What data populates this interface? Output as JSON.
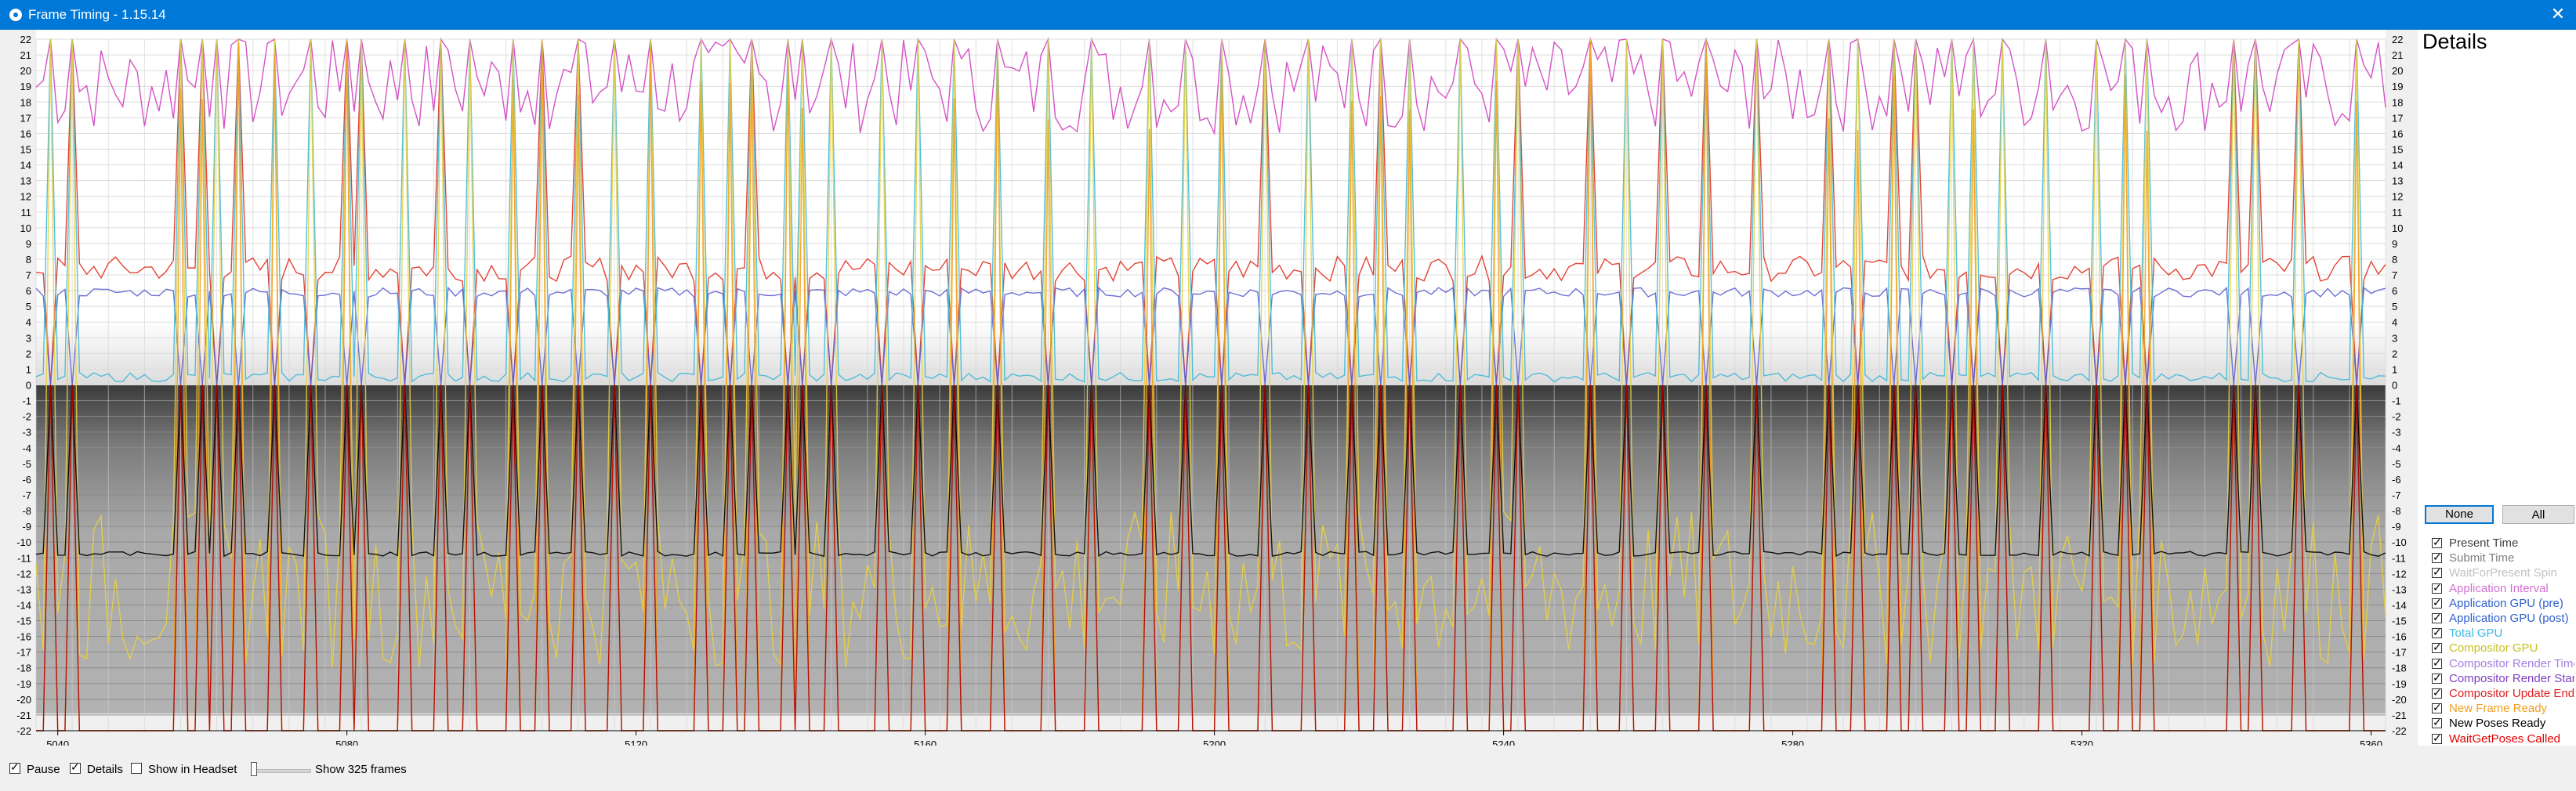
{
  "window": {
    "title": "Frame Timing - 1.15.14"
  },
  "graph": {
    "y_ticks": [
      "22",
      "21",
      "20",
      "19",
      "18",
      "17",
      "16",
      "15",
      "14",
      "13",
      "12",
      "11",
      "10",
      "9",
      "8",
      "7",
      "6",
      "5",
      "4",
      "3",
      "2",
      "1",
      "0",
      "-1",
      "-2",
      "-3",
      "-4",
      "-5",
      "-6",
      "-7",
      "-8",
      "-9",
      "-10",
      "-11",
      "-12",
      "-13",
      "-14",
      "-15",
      "-16",
      "-17",
      "-18",
      "-19",
      "-20",
      "-21",
      "-22"
    ],
    "x_ticks": [
      "5040",
      "5080",
      "5120",
      "5160",
      "5200",
      "5240",
      "5280",
      "5320",
      "5360"
    ]
  },
  "chart_data": {
    "type": "line",
    "xlim": [
      5037,
      5362
    ],
    "ylim": [
      -22,
      22
    ],
    "x_ticks": [
      5040,
      5080,
      5120,
      5160,
      5200,
      5240,
      5280,
      5320,
      5360
    ],
    "spikes_at": [
      5039,
      5042,
      5057,
      5060,
      5062,
      5065,
      5070,
      5075,
      5080,
      5082,
      5088,
      5093,
      5097,
      5103,
      5107,
      5112,
      5117,
      5122,
      5129,
      5133,
      5136,
      5141,
      5143,
      5147,
      5154,
      5159,
      5164,
      5170,
      5177,
      5183,
      5191,
      5196,
      5201,
      5207,
      5213,
      5219,
      5223,
      5227,
      5234,
      5239,
      5242,
      5252,
      5257,
      5262,
      5268,
      5275,
      5285,
      5289,
      5294,
      5297,
      5302,
      5305,
      5309,
      5315,
      5322,
      5326,
      5329,
      5341,
      5344,
      5350,
      5358
    ],
    "series": [
      {
        "name": "Application Interval",
        "color": "#d040c0",
        "approx_level": 19
      },
      {
        "name": "Application GPU (pre)",
        "color": "#e03020",
        "approx_level": 7.2
      },
      {
        "name": "Application GPU (post)",
        "color": "#6060d0",
        "approx_level": 6.0
      },
      {
        "name": "Total GPU",
        "color": "#40b8d8",
        "approx_level": 0.3
      },
      {
        "name": "Compositor GPU",
        "color": "#e8d040",
        "approx_level": -14
      },
      {
        "name": "New Frame Ready",
        "color": "#f0a020",
        "approx_level": -10.5
      },
      {
        "name": "New Poses Ready",
        "color": "#000000",
        "approx_level": -10.7
      },
      {
        "name": "WaitGetPoses Called",
        "color": "#b00000",
        "approx_level": -22
      }
    ]
  },
  "details": {
    "title": "Details",
    "none_label": "None",
    "all_label": "All",
    "series": [
      {
        "label": "Present Time",
        "color": "#404040"
      },
      {
        "label": "Submit Time",
        "color": "#808080"
      },
      {
        "label": "WaitForPresent Spin",
        "color": "#c0c0c0"
      },
      {
        "label": "Application Interval",
        "color": "#d070d0"
      },
      {
        "label": "Application GPU (pre)",
        "color": "#3060d0"
      },
      {
        "label": "Application GPU (post)",
        "color": "#3060d0"
      },
      {
        "label": "Total GPU",
        "color": "#40b8e0"
      },
      {
        "label": "Compositor GPU",
        "color": "#c8c020"
      },
      {
        "label": "Compositor Render Time",
        "color": "#a080e0"
      },
      {
        "label": "Compositor Render Start",
        "color": "#8040c0"
      },
      {
        "label": "Compositor Update End",
        "color": "#e02020"
      },
      {
        "label": "New Frame Ready",
        "color": "#f0a020"
      },
      {
        "label": "New Poses Ready",
        "color": "#000000"
      },
      {
        "label": "WaitGetPoses Called",
        "color": "#e00000"
      }
    ]
  },
  "statusbar": {
    "pause_label": "Pause",
    "details_label": "Details",
    "headset_label": "Show in Headset",
    "frames_label": "Show 325 frames"
  }
}
